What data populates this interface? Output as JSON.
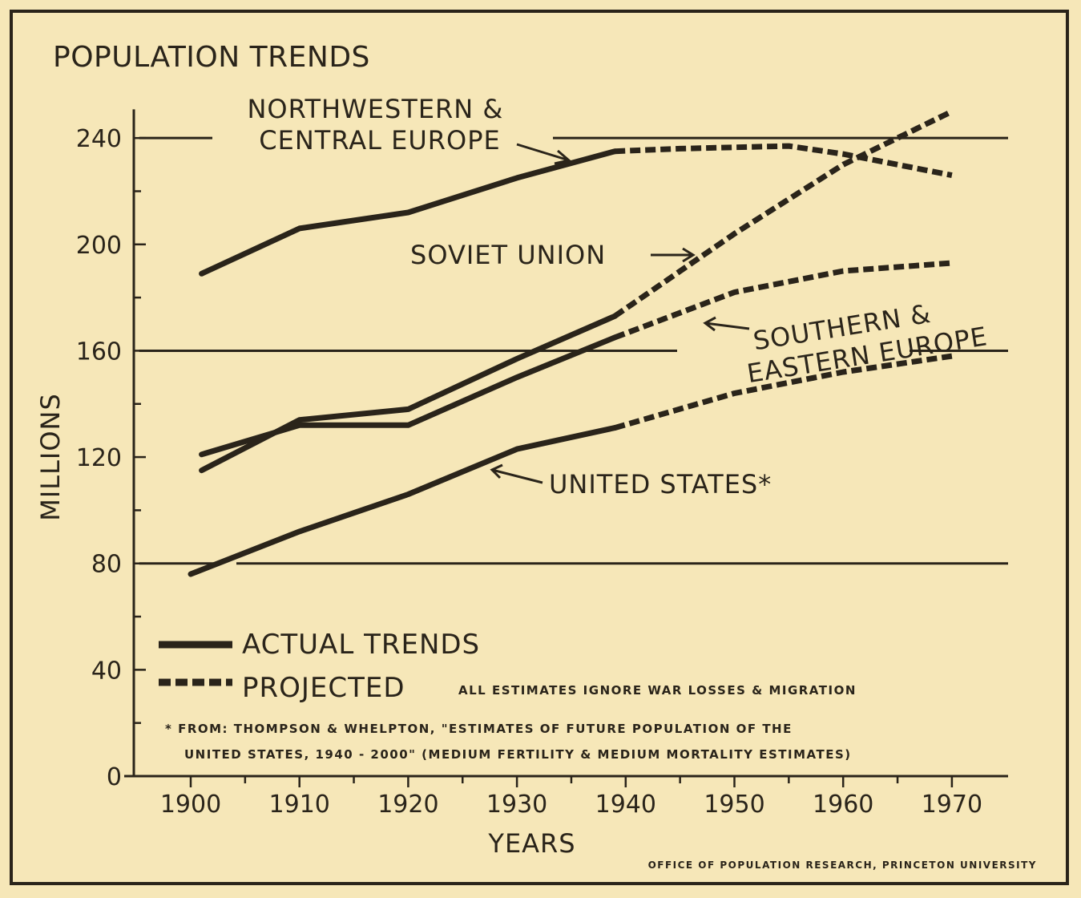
{
  "chart_data": {
    "type": "line",
    "title": "POPULATION TRENDS",
    "xlabel": "YEARS",
    "ylabel": "MILLIONS",
    "x_ticks": [
      "1900",
      "1910",
      "1920",
      "1930",
      "1940",
      "1950",
      "1960",
      "1970"
    ],
    "y_ticks": [
      "0",
      "40",
      "80",
      "120",
      "160",
      "200",
      "240"
    ],
    "xlim": [
      1896,
      1975
    ],
    "ylim": [
      0,
      255
    ],
    "grid_lines_y": [
      80,
      160,
      240
    ],
    "legend": {
      "position": "bottom-left",
      "actual": "ACTUAL TRENDS",
      "projected": "PROJECTED"
    },
    "series": [
      {
        "name": "NORTHWESTERN & CENTRAL EUROPE",
        "label_lines": [
          "NORTHWESTERN &",
          "CENTRAL EUROPE"
        ],
        "actual": [
          [
            1901,
            189
          ],
          [
            1910,
            206
          ],
          [
            1920,
            212
          ],
          [
            1930,
            225
          ],
          [
            1939,
            235
          ]
        ],
        "projected": [
          [
            1939,
            235
          ],
          [
            1945,
            236
          ],
          [
            1955,
            237
          ],
          [
            1960,
            234
          ],
          [
            1970,
            226
          ]
        ]
      },
      {
        "name": "SOVIET UNION",
        "label_lines": [
          "SOVIET UNION"
        ],
        "actual": [
          [
            1901,
            115
          ],
          [
            1910,
            134
          ],
          [
            1920,
            138
          ],
          [
            1930,
            157
          ],
          [
            1939,
            173
          ]
        ],
        "projected": [
          [
            1939,
            173
          ],
          [
            1950,
            204
          ],
          [
            1960,
            230
          ],
          [
            1970,
            250
          ]
        ]
      },
      {
        "name": "SOUTHERN & EASTERN EUROPE",
        "label_lines": [
          "SOUTHERN &",
          "EASTERN EUROPE"
        ],
        "actual": [
          [
            1901,
            121
          ],
          [
            1910,
            132
          ],
          [
            1920,
            132
          ],
          [
            1930,
            150
          ],
          [
            1939,
            165
          ]
        ],
        "projected": [
          [
            1939,
            165
          ],
          [
            1950,
            182
          ],
          [
            1960,
            190
          ],
          [
            1970,
            193
          ]
        ]
      },
      {
        "name": "UNITED STATES*",
        "label_lines": [
          "UNITED STATES*"
        ],
        "actual": [
          [
            1900,
            76
          ],
          [
            1910,
            92
          ],
          [
            1920,
            106
          ],
          [
            1930,
            123
          ],
          [
            1939,
            131
          ]
        ],
        "projected": [
          [
            1939,
            131
          ],
          [
            1950,
            144
          ],
          [
            1960,
            152
          ],
          [
            1970,
            158
          ]
        ]
      }
    ],
    "annotations": [
      "ALL ESTIMATES IGNORE WAR LOSSES & MIGRATION",
      "* FROM: THOMPSON & WHELPTON, \"ESTIMATES OF FUTURE POPULATION OF THE",
      "UNITED STATES, 1940 - 2000\" (MEDIUM FERTILITY & MEDIUM MORTALITY ESTIMATES)"
    ],
    "credit": "OFFICE OF POPULATION RESEARCH, PRINCETON UNIVERSITY"
  }
}
